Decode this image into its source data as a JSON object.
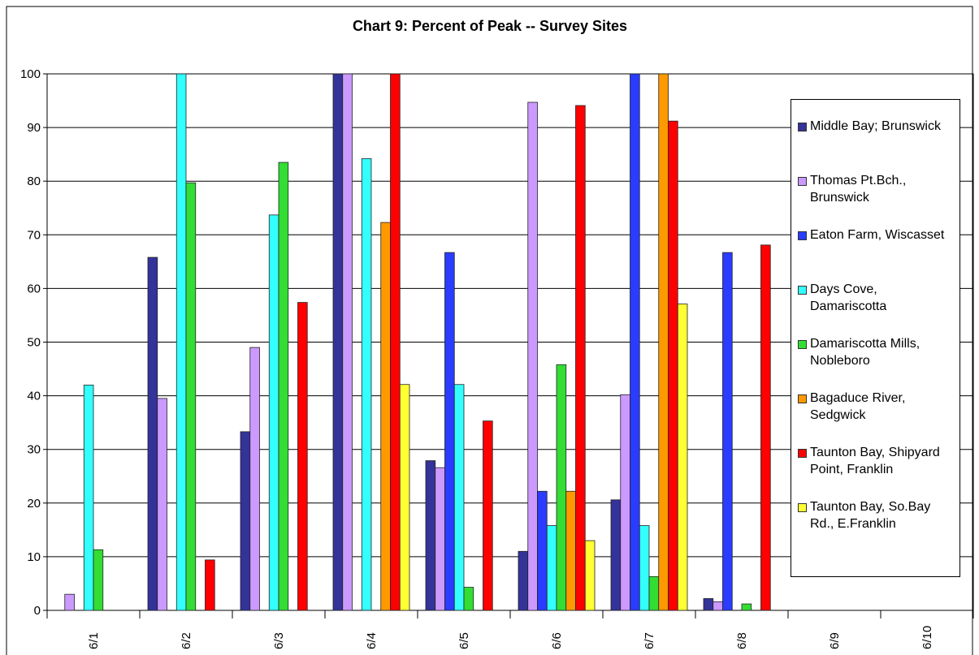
{
  "chart_data": {
    "type": "bar",
    "title": "Chart 9:  Percent of Peak -- Survey Sites",
    "categories": [
      "6/1",
      "6/2",
      "6/3",
      "6/4",
      "6/5",
      "6/6",
      "6/7",
      "6/8",
      "6/9",
      "6/10"
    ],
    "series": [
      {
        "name": "Middle Bay; Brunswick",
        "color": "#333399",
        "values": [
          null,
          65.8,
          33.3,
          100,
          27.9,
          11,
          20.6,
          2.2,
          null,
          null
        ]
      },
      {
        "name": "Thomas Pt.Bch., Brunswick",
        "color": "#cc99ff",
        "values": [
          3,
          39.5,
          49,
          100,
          26.6,
          94.7,
          40.2,
          1.6,
          null,
          null
        ]
      },
      {
        "name": "Eaton Farm, Wiscasset",
        "color": "#2a3cff",
        "values": [
          null,
          null,
          null,
          null,
          66.7,
          22.2,
          100,
          66.7,
          null,
          null
        ]
      },
      {
        "name": "Days Cove, Damariscotta",
        "color": "#33ffff",
        "values": [
          42,
          100,
          73.7,
          84.2,
          42.1,
          15.8,
          15.8,
          null,
          null,
          null
        ]
      },
      {
        "name": "Damariscotta Mills, Nobleboro",
        "color": "#33dd33",
        "values": [
          11.3,
          79.7,
          83.5,
          null,
          4.3,
          45.8,
          6.3,
          1.2,
          null,
          null
        ]
      },
      {
        "name": "Bagaduce River, Sedgwick",
        "color": "#ff9900",
        "values": [
          null,
          null,
          null,
          72.3,
          null,
          22.2,
          100,
          null,
          null,
          null
        ]
      },
      {
        "name": "Taunton Bay, Shipyard Point, Franklin",
        "color": "#ff0000",
        "values": [
          null,
          9.4,
          57.4,
          100,
          35.3,
          94.1,
          91.2,
          68.1,
          null,
          null
        ]
      },
      {
        "name": "Taunton Bay, So.Bay Rd., E.Franklin",
        "color": "#ffff33",
        "values": [
          null,
          null,
          null,
          42.1,
          null,
          13,
          57.1,
          null,
          null,
          null
        ]
      }
    ],
    "ylim": [
      0,
      100
    ],
    "yticks": [
      0,
      10,
      20,
      30,
      40,
      50,
      60,
      70,
      80,
      90,
      100
    ],
    "grid": true
  }
}
